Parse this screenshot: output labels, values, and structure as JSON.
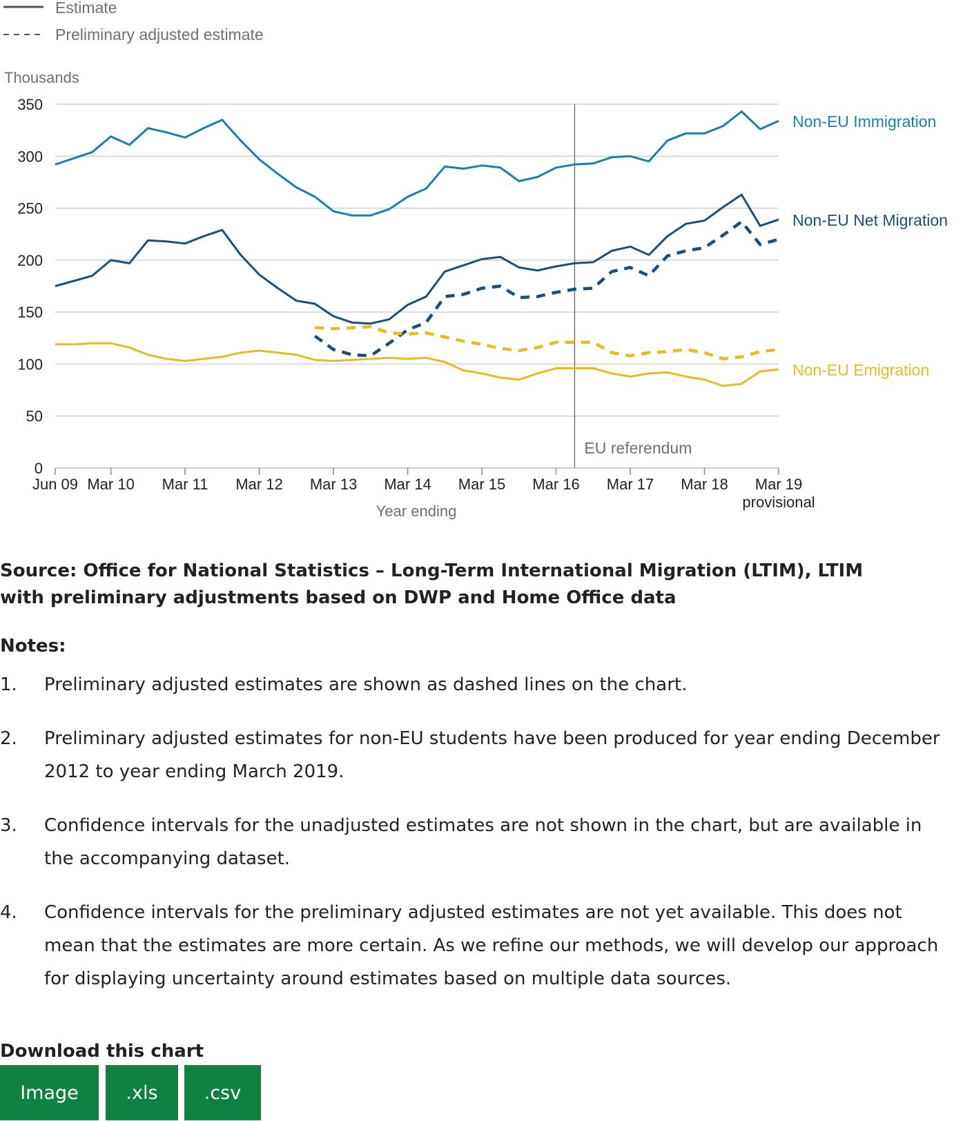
{
  "legend": {
    "estimate_label": "Estimate",
    "adjusted_label": "Preliminary adjusted estimate"
  },
  "chart_data": {
    "type": "line",
    "ylabel": "Thousands",
    "xlabel": "Year ending",
    "ylim": [
      0,
      350
    ],
    "yticks": [
      0,
      50,
      100,
      150,
      200,
      250,
      300,
      350
    ],
    "grid": true,
    "x_tick_labels": [
      "Jun 09",
      "Mar 10",
      "Mar 11",
      "Mar 12",
      "Mar 13",
      "Mar 14",
      "Mar 15",
      "Mar 16",
      "Mar 17",
      "Mar 18",
      "Mar 19"
    ],
    "x_tick_sublabel": "provisional",
    "x_tick_sublabel_for": "Mar 19",
    "x": [
      "Jun 09",
      "Sep 09",
      "Dec 09",
      "Mar 10",
      "Jun 10",
      "Sep 10",
      "Dec 10",
      "Mar 11",
      "Jun 11",
      "Sep 11",
      "Dec 11",
      "Mar 12",
      "Jun 12",
      "Sep 12",
      "Dec 12",
      "Mar 13",
      "Jun 13",
      "Sep 13",
      "Dec 13",
      "Mar 14",
      "Jun 14",
      "Sep 14",
      "Dec 14",
      "Mar 15",
      "Jun 15",
      "Sep 15",
      "Dec 15",
      "Mar 16",
      "Jun 16",
      "Sep 16",
      "Dec 16",
      "Mar 17",
      "Jun 17",
      "Sep 17",
      "Dec 17",
      "Mar 18",
      "Jun 18",
      "Sep 18",
      "Dec 18",
      "Mar 19"
    ],
    "series": [
      {
        "name": "Non-EU Immigration",
        "style": "solid",
        "color": "#1b7fa8",
        "values": [
          292,
          298,
          304,
          319,
          311,
          327,
          323,
          318,
          327,
          335,
          315,
          297,
          283,
          270,
          261,
          247,
          243,
          243,
          249,
          261,
          269,
          290,
          288,
          291,
          289,
          276,
          280,
          289,
          292,
          293,
          299,
          300,
          295,
          315,
          322,
          322,
          329,
          343,
          326,
          334
        ]
      },
      {
        "name": "Non-EU Net Migration",
        "style": "solid",
        "color": "#1c4f78",
        "values": [
          175,
          180,
          185,
          200,
          197,
          219,
          218,
          216,
          223,
          229,
          205,
          186,
          173,
          161,
          158,
          146,
          140,
          139,
          143,
          157,
          165,
          189,
          195,
          201,
          203,
          193,
          190,
          194,
          197,
          198,
          209,
          213,
          205,
          223,
          235,
          238,
          251,
          263,
          233,
          239
        ]
      },
      {
        "name": "Non-EU Emigration",
        "style": "solid",
        "color": "#e6bc20",
        "values": [
          119,
          119,
          120,
          120,
          116,
          109,
          105,
          103,
          105,
          107,
          111,
          113,
          111,
          109,
          104,
          103,
          104,
          105,
          106,
          105,
          106,
          102,
          94,
          91,
          87,
          85,
          91,
          96,
          96,
          96,
          91,
          88,
          91,
          92,
          88,
          85,
          79,
          81,
          93,
          95
        ]
      },
      {
        "name": "Non-EU Net Migration",
        "style": "dashed",
        "color": "#1c4f78",
        "values": [
          null,
          null,
          null,
          null,
          null,
          null,
          null,
          null,
          null,
          null,
          null,
          null,
          null,
          null,
          127,
          114,
          109,
          108,
          120,
          133,
          140,
          165,
          167,
          173,
          175,
          164,
          165,
          169,
          172,
          173,
          189,
          193,
          185,
          204,
          209,
          212,
          224,
          237,
          215,
          220
        ]
      },
      {
        "name": "Non-EU Emigration",
        "style": "dashed",
        "color": "#e6bc20",
        "values": [
          null,
          null,
          null,
          null,
          null,
          null,
          null,
          null,
          null,
          null,
          null,
          null,
          null,
          null,
          135,
          134,
          135,
          136,
          130,
          129,
          130,
          126,
          122,
          119,
          115,
          113,
          116,
          121,
          121,
          121,
          111,
          108,
          111,
          112,
          114,
          111,
          105,
          107,
          112,
          114
        ]
      }
    ],
    "annotation": {
      "text": "EU referendum",
      "x": "Jun 16"
    }
  },
  "source_text": "Source: Office for National Statistics – Long-Term International Migration (LTIM), LTIM with preliminary adjustments based on DWP and Home Office data",
  "notes": {
    "heading": "Notes:",
    "items": [
      {
        "num": "1.",
        "text": "Preliminary adjusted estimates are shown as dashed lines on the chart."
      },
      {
        "num": "2.",
        "text": "Preliminary adjusted estimates for non-EU students have been produced for year ending December 2012 to year ending March 2019."
      },
      {
        "num": "3.",
        "text": "Confidence intervals for the unadjusted estimates are not shown in the chart, but are available in the accompanying dataset."
      },
      {
        "num": "4.",
        "text": "Confidence intervals for the preliminary adjusted estimates are not yet available. This does not mean that the estimates are more certain. As we refine our methods, we will develop our approach for displaying uncertainty around estimates based on multiple data sources."
      }
    ]
  },
  "download": {
    "heading": "Download this chart",
    "buttons": [
      "Image",
      ".xls",
      ".csv"
    ]
  }
}
